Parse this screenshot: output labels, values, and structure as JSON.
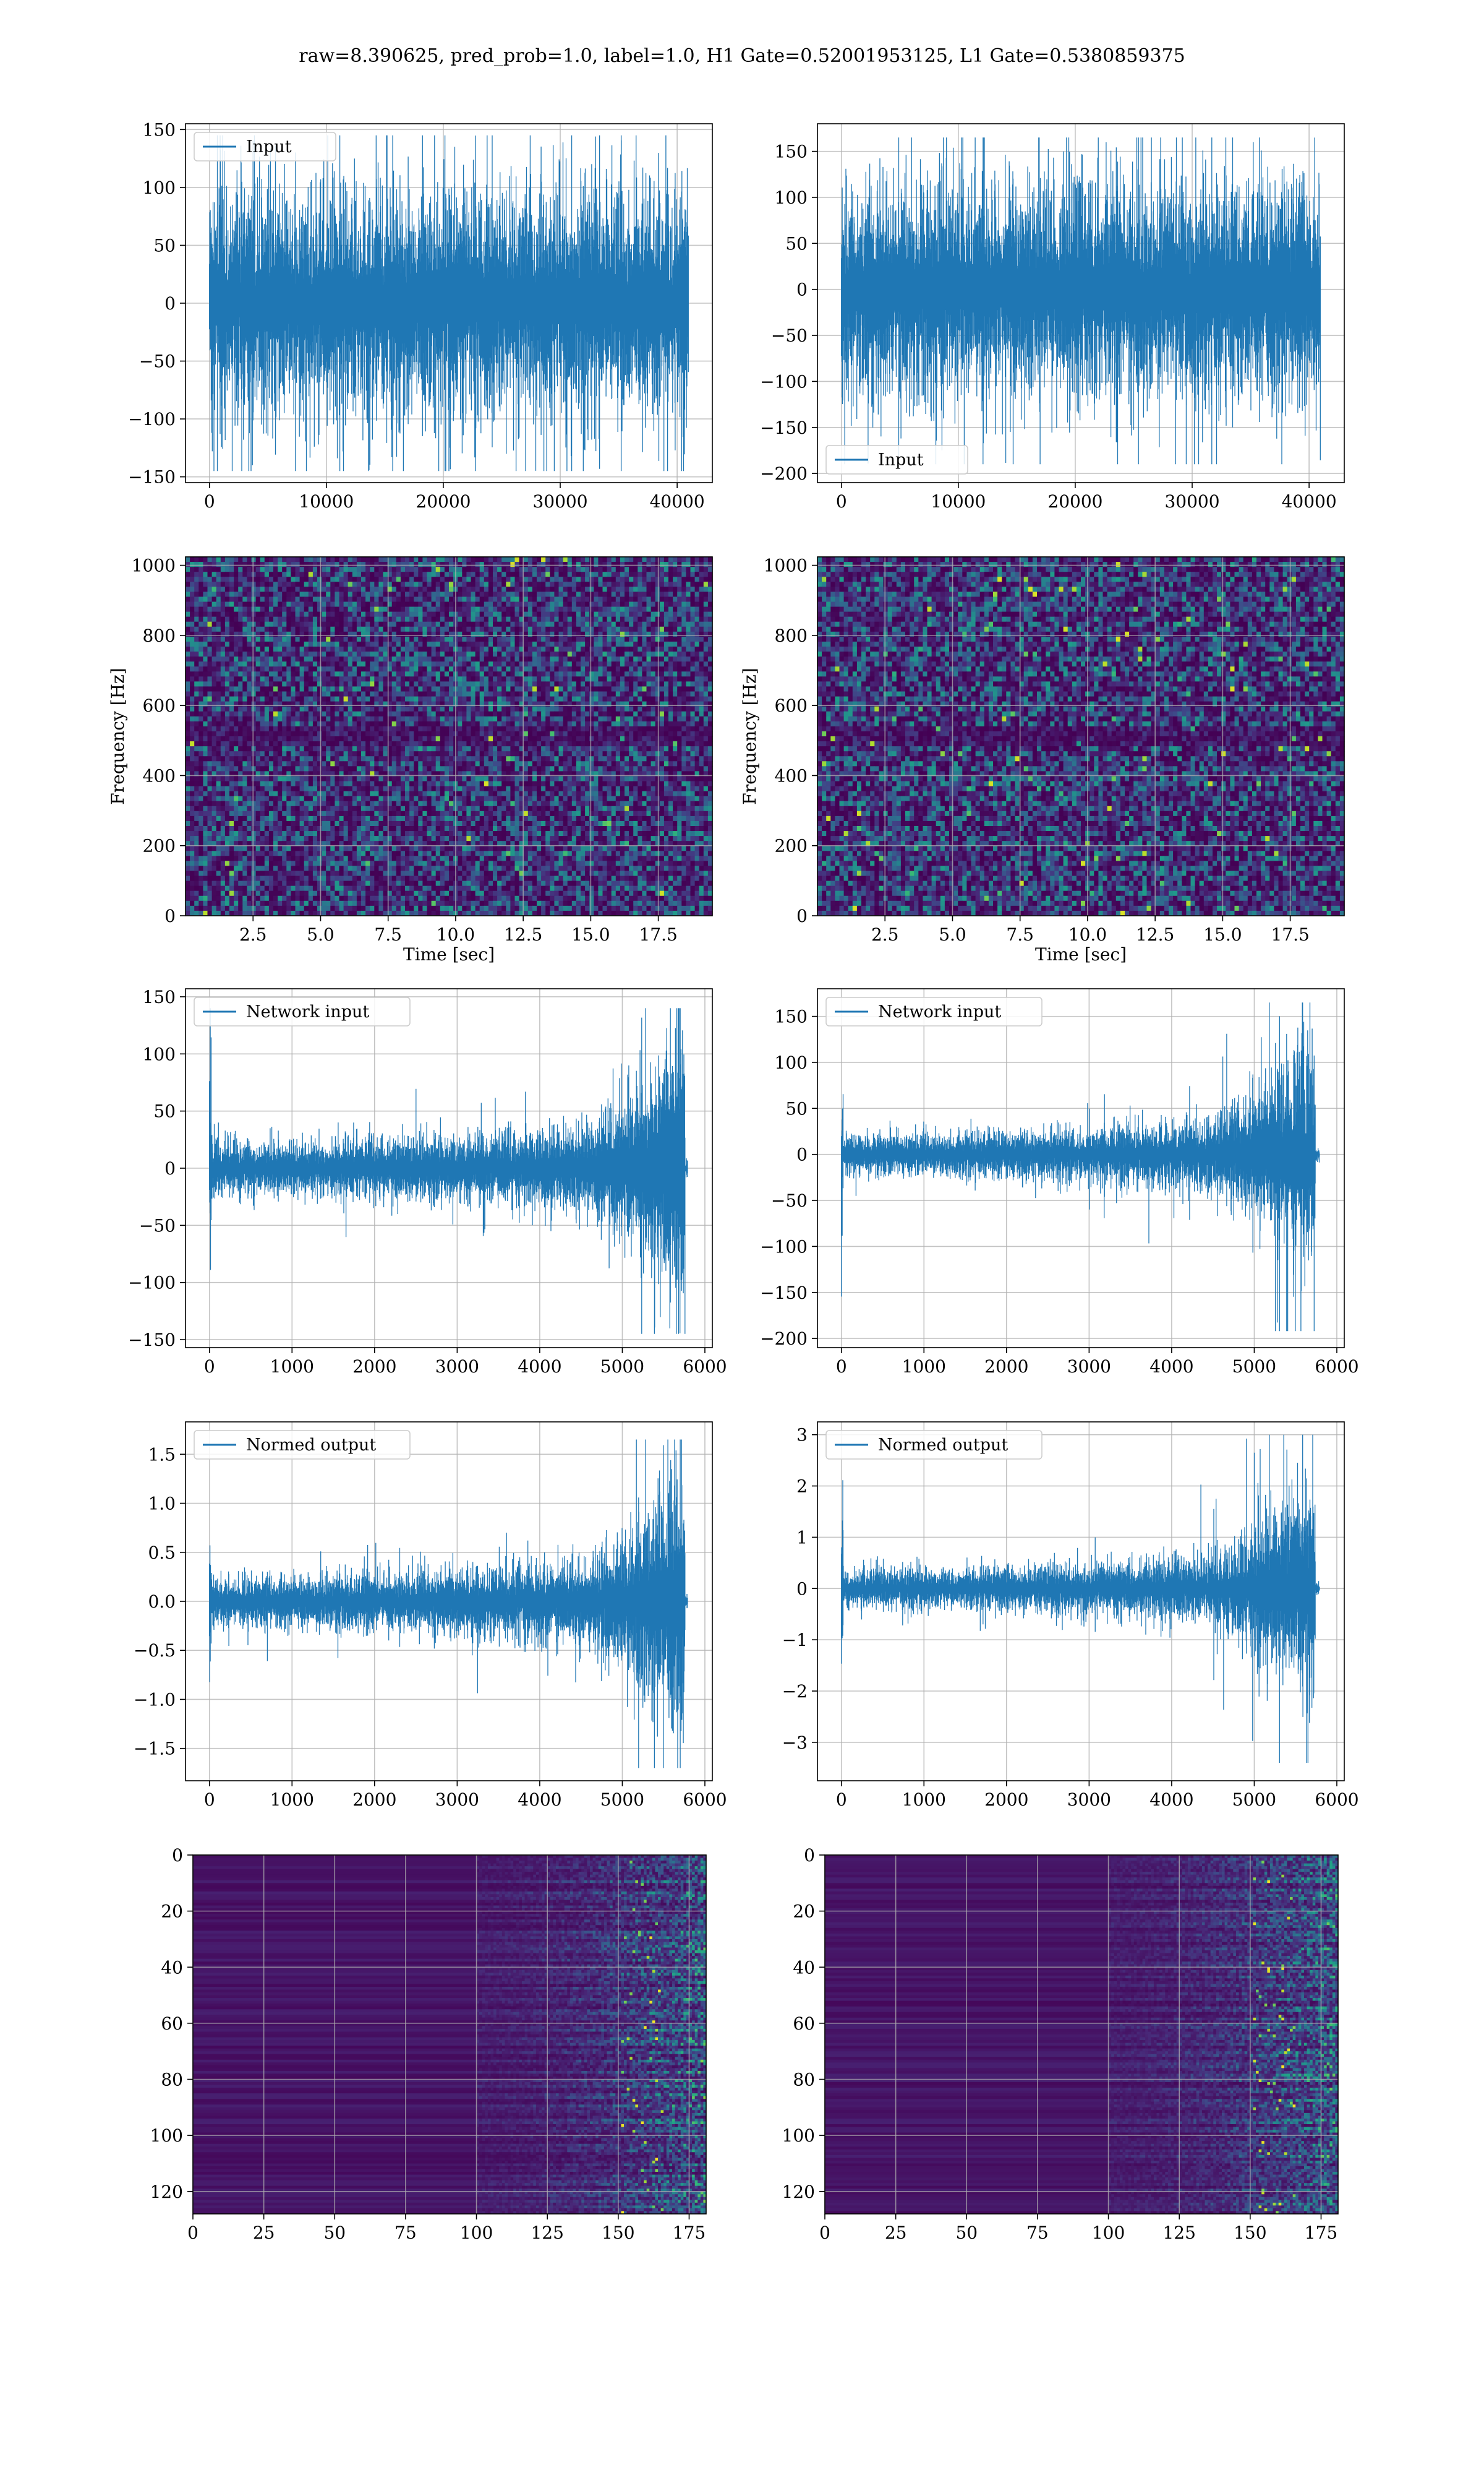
{
  "figure": {
    "title": "raw=8.390625, pred_prob=1.0, label=1.0, H1 Gate=0.52001953125, L1 Gate=0.5380859375",
    "line_color": "#1f77b4",
    "grid_color": "#b0b0b0",
    "colormap": "viridis"
  },
  "chart_data": [
    {
      "id": "h1-input",
      "type": "line",
      "series": [
        {
          "name": "Input"
        }
      ],
      "xlim": [
        -2048,
        43008
      ],
      "ylim": [
        -155,
        155
      ],
      "xticks": [
        0,
        10000,
        20000,
        30000,
        40000
      ],
      "yticks": [
        -150,
        -100,
        -50,
        0,
        50,
        100,
        150
      ],
      "x_range": [
        0,
        40960
      ],
      "envelope": {
        "core": 50,
        "peak_max": 145,
        "peak_min": -145,
        "profile": "stationary"
      },
      "legend": "upper left",
      "grid": true
    },
    {
      "id": "l1-input",
      "type": "line",
      "series": [
        {
          "name": "Input"
        }
      ],
      "xlim": [
        -2048,
        43008
      ],
      "ylim": [
        -210,
        180
      ],
      "xticks": [
        0,
        10000,
        20000,
        30000,
        40000
      ],
      "yticks": [
        -200,
        -150,
        -100,
        -50,
        0,
        50,
        100,
        150
      ],
      "x_range": [
        0,
        40960
      ],
      "envelope": {
        "core": 60,
        "peak_max": 165,
        "peak_min": -190,
        "profile": "stationary"
      },
      "legend": "lower left",
      "grid": true
    },
    {
      "id": "h1-spectrogram",
      "type": "heatmap",
      "xlabel": "Time [sec]",
      "ylabel": "Frequency [Hz]",
      "xlim": [
        0,
        19.5
      ],
      "ylim": [
        0,
        1024
      ],
      "xticks": [
        2.5,
        5.0,
        7.5,
        10.0,
        12.5,
        15.0,
        17.5
      ],
      "yticks": [
        0,
        200,
        400,
        600,
        800,
        1000
      ],
      "colormap": "viridis",
      "grid": true
    },
    {
      "id": "l1-spectrogram",
      "type": "heatmap",
      "xlabel": "Time [sec]",
      "ylabel": "Frequency [Hz]",
      "xlim": [
        0,
        19.5
      ],
      "ylim": [
        0,
        1024
      ],
      "xticks": [
        2.5,
        5.0,
        7.5,
        10.0,
        12.5,
        15.0,
        17.5
      ],
      "yticks": [
        0,
        200,
        400,
        600,
        800,
        1000
      ],
      "colormap": "viridis",
      "grid": true
    },
    {
      "id": "h1-network-input",
      "type": "line",
      "series": [
        {
          "name": "Network input"
        }
      ],
      "xlim": [
        -290,
        6090
      ],
      "ylim": [
        -157,
        157
      ],
      "xticks": [
        0,
        1000,
        2000,
        3000,
        4000,
        5000,
        6000
      ],
      "yticks": [
        -150,
        -100,
        -50,
        0,
        50,
        100,
        150
      ],
      "x_range": [
        0,
        5790
      ],
      "envelope": {
        "core": 15,
        "peak_max": 140,
        "peak_min": -145,
        "burst_x": [
          4700,
          5760
        ],
        "tail_x": [
          5760,
          5800
        ],
        "profile": "burst"
      },
      "legend": "upper left",
      "grid": true
    },
    {
      "id": "l1-network-input",
      "type": "line",
      "series": [
        {
          "name": "Network input"
        }
      ],
      "xlim": [
        -290,
        6090
      ],
      "ylim": [
        -210,
        180
      ],
      "xticks": [
        0,
        1000,
        2000,
        3000,
        4000,
        5000,
        6000
      ],
      "yticks": [
        -200,
        -150,
        -100,
        -50,
        0,
        50,
        100,
        150
      ],
      "x_range": [
        0,
        5790
      ],
      "envelope": {
        "core": 15,
        "peak_max": 165,
        "peak_min": -192,
        "burst_x": [
          4500,
          5740
        ],
        "tail_x": [
          5740,
          5800
        ],
        "profile": "burst"
      },
      "legend": "upper left",
      "grid": true
    },
    {
      "id": "h1-normed-output",
      "type": "line",
      "series": [
        {
          "name": "Normed output"
        }
      ],
      "xlim": [
        -290,
        6090
      ],
      "ylim": [
        -1.83,
        1.83
      ],
      "xticks": [
        0,
        1000,
        2000,
        3000,
        4000,
        5000,
        6000
      ],
      "yticks": [
        -1.5,
        -1.0,
        -0.5,
        0.0,
        0.5,
        1.0,
        1.5
      ],
      "x_range": [
        0,
        5790
      ],
      "envelope": {
        "core": 0.17,
        "peak_max": 1.65,
        "peak_min": -1.7,
        "burst_x": [
          4700,
          5760
        ],
        "tail_x": [
          5760,
          5800
        ],
        "profile": "burst"
      },
      "legend": "upper left",
      "grid": true
    },
    {
      "id": "l1-normed-output",
      "type": "line",
      "series": [
        {
          "name": "Normed output"
        }
      ],
      "xlim": [
        -290,
        6090
      ],
      "ylim": [
        -3.75,
        3.25
      ],
      "xticks": [
        0,
        1000,
        2000,
        3000,
        4000,
        5000,
        6000
      ],
      "yticks": [
        -3,
        -2,
        -1,
        0,
        1,
        2,
        3
      ],
      "x_range": [
        0,
        5790
      ],
      "envelope": {
        "core": 0.25,
        "peak_max": 3.0,
        "peak_min": -3.4,
        "burst_x": [
          4500,
          5740
        ],
        "tail_x": [
          5740,
          5800
        ],
        "profile": "burst"
      },
      "legend": "upper left",
      "grid": true
    },
    {
      "id": "h1-feature-map",
      "type": "heatmap",
      "xlim": [
        0,
        181
      ],
      "ylim": [
        128,
        0
      ],
      "xticks": [
        0,
        25,
        50,
        75,
        100,
        125,
        150,
        175
      ],
      "yticks": [
        0,
        20,
        40,
        60,
        80,
        100,
        120
      ],
      "colormap": "viridis",
      "grid": true,
      "active_from_x": 125
    },
    {
      "id": "l1-feature-map",
      "type": "heatmap",
      "xlim": [
        0,
        181
      ],
      "ylim": [
        128,
        0
      ],
      "xticks": [
        0,
        25,
        50,
        75,
        100,
        125,
        150,
        175
      ],
      "yticks": [
        0,
        20,
        40,
        60,
        80,
        100,
        120
      ],
      "colormap": "viridis",
      "grid": true,
      "active_from_x": 125
    }
  ]
}
